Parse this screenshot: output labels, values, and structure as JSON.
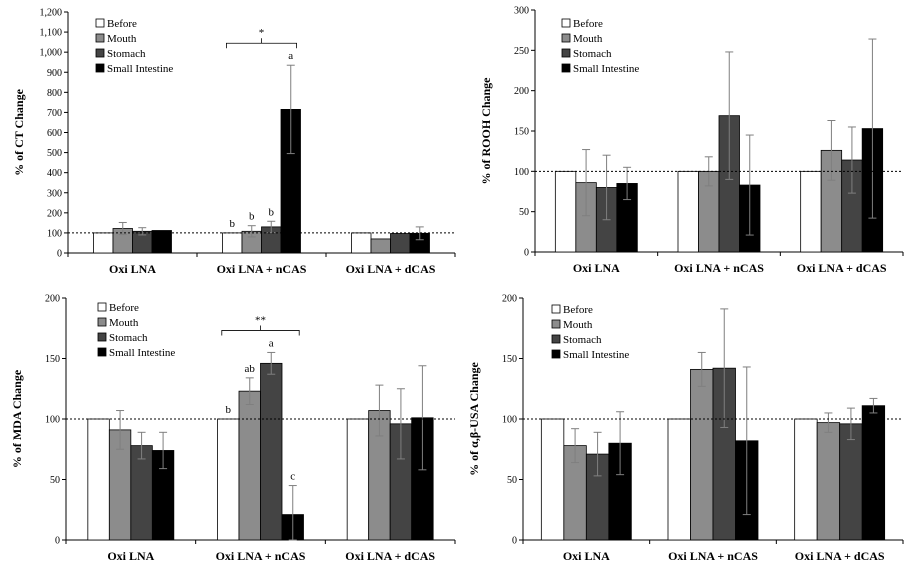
{
  "colors": {
    "Before": "#ffffff",
    "Mouth": "#8c8c8c",
    "Stomach": "#444444",
    "Small Intestine": "#000000",
    "edge": "#000000",
    "errorbar": "#7f7f7f",
    "reference_line": "#000000"
  },
  "chart_data": [
    {
      "type": "bar",
      "ylabel": "% of CT Change",
      "ylim": [
        0,
        1200
      ],
      "ytick_step": 100,
      "ytick_labels": [
        "0",
        "100",
        "200",
        "300",
        "400",
        "500",
        "600",
        "700",
        "800",
        "900",
        "1,000",
        "1,100",
        "1,200"
      ],
      "reference_line": 100,
      "legend_position": "top-left",
      "categories": [
        "Oxi LNA",
        "Oxi LNA + nCAS",
        "Oxi LNA + dCAS"
      ],
      "series": [
        {
          "name": "Before",
          "values": [
            100,
            100,
            100
          ],
          "errors": [
            0,
            0,
            0
          ]
        },
        {
          "name": "Mouth",
          "values": [
            122,
            108,
            70
          ],
          "errors": [
            30,
            28,
            0
          ]
        },
        {
          "name": "Stomach",
          "values": [
            108,
            130,
            97
          ],
          "errors": [
            18,
            28,
            0
          ]
        },
        {
          "name": "Small Intestine",
          "values": [
            112,
            715,
            98
          ],
          "errors": [
            0,
            220,
            32
          ]
        }
      ],
      "letters": [
        {
          "category": 1,
          "series": 0,
          "text": "b"
        },
        {
          "category": 1,
          "series": 1,
          "text": "b"
        },
        {
          "category": 1,
          "series": 2,
          "text": "b"
        },
        {
          "category": 1,
          "series": 3,
          "text": "a"
        }
      ],
      "significance": {
        "category": 1,
        "text": "*"
      }
    },
    {
      "type": "bar",
      "ylabel": "% of ROOH Change",
      "ylim": [
        0,
        300
      ],
      "ytick_step": 50,
      "ytick_labels": [
        "0",
        "50",
        "100",
        "150",
        "200",
        "250",
        "300"
      ],
      "reference_line": 100,
      "legend_position": "top-left",
      "categories": [
        "Oxi LNA",
        "Oxi LNA + nCAS",
        "Oxi LNA + dCAS"
      ],
      "series": [
        {
          "name": "Before",
          "values": [
            100,
            100,
            100
          ],
          "errors": [
            0,
            0,
            0
          ]
        },
        {
          "name": "Mouth",
          "values": [
            86,
            100,
            126
          ],
          "errors": [
            41,
            18,
            37
          ]
        },
        {
          "name": "Stomach",
          "values": [
            80,
            169,
            114
          ],
          "errors": [
            40,
            79,
            41
          ]
        },
        {
          "name": "Small Intestine",
          "values": [
            85,
            83,
            153
          ],
          "errors": [
            20,
            62,
            111
          ]
        }
      ],
      "letters": [],
      "significance": null
    },
    {
      "type": "bar",
      "ylabel": "% of MDA Change",
      "ylim": [
        0,
        200
      ],
      "ytick_step": 50,
      "ytick_labels": [
        "0",
        "50",
        "100",
        "150",
        "200"
      ],
      "reference_line": 100,
      "legend_position": "top-left",
      "categories": [
        "Oxi LNA",
        "Oxi LNA + nCAS",
        "Oxi LNA + dCAS"
      ],
      "series": [
        {
          "name": "Before",
          "values": [
            100,
            100,
            100
          ],
          "errors": [
            0,
            0,
            0
          ]
        },
        {
          "name": "Mouth",
          "values": [
            91,
            123,
            107
          ],
          "errors": [
            16,
            11,
            21
          ]
        },
        {
          "name": "Stomach",
          "values": [
            78,
            146,
            96
          ],
          "errors": [
            11,
            9,
            29
          ]
        },
        {
          "name": "Small Intestine",
          "values": [
            74,
            21,
            101
          ],
          "errors": [
            15,
            24,
            43
          ]
        }
      ],
      "letters": [
        {
          "category": 1,
          "series": 0,
          "text": "b"
        },
        {
          "category": 1,
          "series": 1,
          "text": "ab"
        },
        {
          "category": 1,
          "series": 2,
          "text": "a"
        },
        {
          "category": 1,
          "series": 3,
          "text": "c",
          "below": true
        }
      ],
      "significance": {
        "category": 1,
        "text": "**"
      }
    },
    {
      "type": "bar",
      "ylabel": "% of α,β-USA Change",
      "ylim": [
        0,
        200
      ],
      "ytick_step": 50,
      "ytick_labels": [
        "0",
        "50",
        "100",
        "150",
        "200"
      ],
      "reference_line": 100,
      "legend_position": "top-left",
      "categories": [
        "Oxi LNA",
        "Oxi LNA + nCAS",
        "Oxi LNA + dCAS"
      ],
      "series": [
        {
          "name": "Before",
          "values": [
            100,
            100,
            100
          ],
          "errors": [
            0,
            0,
            0
          ]
        },
        {
          "name": "Mouth",
          "values": [
            78,
            141,
            97
          ],
          "errors": [
            14,
            14,
            8
          ]
        },
        {
          "name": "Stomach",
          "values": [
            71,
            142,
            96
          ],
          "errors": [
            18,
            49,
            13
          ]
        },
        {
          "name": "Small Intestine",
          "values": [
            80,
            82,
            111
          ],
          "errors": [
            26,
            61,
            6
          ]
        }
      ],
      "letters": [],
      "significance": null
    }
  ]
}
